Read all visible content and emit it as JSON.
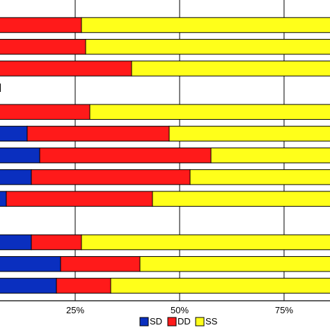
{
  "chart_data": {
    "type": "bar",
    "orientation": "horizontal",
    "stacked": true,
    "x_axis": {
      "ticks": [
        {
          "value": 0,
          "label": ""
        },
        {
          "value": 25,
          "label": "25%"
        },
        {
          "value": 50,
          "label": "50%"
        },
        {
          "value": 75,
          "label": "75%"
        }
      ],
      "xlim": [
        0,
        100
      ],
      "grid": true
    },
    "legend": {
      "placement": "bottom-center",
      "entries": [
        {
          "label": "SD",
          "color": "#0a2fbf"
        },
        {
          "label": "DD",
          "color": "#ff1a1a"
        },
        {
          "label": "SS",
          "color": "#ffff1a"
        }
      ]
    },
    "rows": [
      {
        "SD": 2.5,
        "DD": 24,
        "SS": 73.5
      },
      {
        "SD": 4.5,
        "DD": 23,
        "SS": 72.5
      },
      {
        "SD": 1.5,
        "DD": 37,
        "SS": 61.5
      },
      null,
      {
        "SD": 3.5,
        "DD": 25,
        "SS": 71.5
      },
      {
        "SD": 13.5,
        "DD": 34,
        "SS": 52.5
      },
      {
        "SD": 16.5,
        "DD": 41,
        "SS": 42.5
      },
      {
        "SD": 14.5,
        "DD": 38,
        "SS": 47.5
      },
      {
        "SD": 8.5,
        "DD": 35,
        "SS": 56.5
      },
      null,
      {
        "SD": 14.5,
        "DD": 12,
        "SS": 73.5
      },
      {
        "SD": 21.5,
        "DD": 19,
        "SS": 59.5
      },
      {
        "SD": 20.5,
        "DD": 13,
        "SS": 66.5
      }
    ]
  }
}
